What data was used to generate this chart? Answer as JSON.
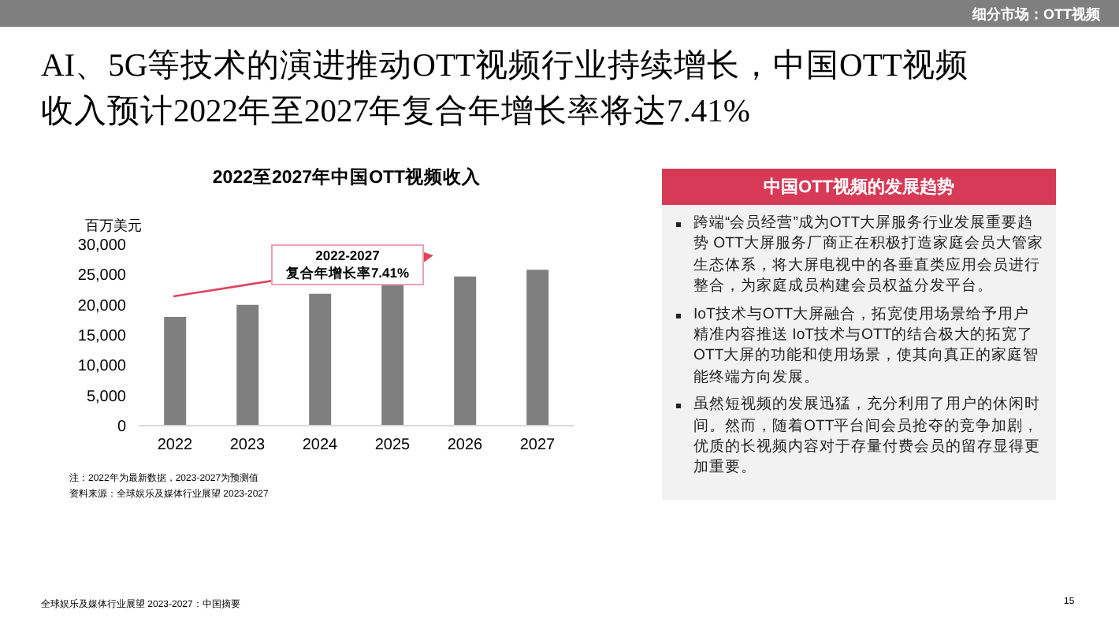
{
  "chart_data": [
    {
      "type": "bar",
      "title": "2022至2027年中国OTT视频收入",
      "ylabel": "百万美元",
      "categories": [
        "2022",
        "2023",
        "2024",
        "2025",
        "2026",
        "2027"
      ],
      "values": [
        18000,
        20000,
        21800,
        23400,
        24700,
        25800
      ],
      "color": "#7f7f7f",
      "ylim": [
        0,
        30000
      ],
      "yticks": [
        0,
        {
          "value": 5000,
          "label": "5,000"
        },
        {
          "value": 10000,
          "label": "10,000"
        },
        {
          "value": 15000,
          "label": "15,000"
        },
        {
          "value": 20000,
          "label": "20,000"
        },
        {
          "value": 25000,
          "label": "25,000"
        },
        {
          "value": 30000,
          "label": "30,000"
        }
      ],
      "annotations": [
        "2022-2027\n复合年增长率7.41%",
        "注：2022年为最新数据，2023-2027为预测值",
        "资料来源：全球娱乐及媒体行业展望 2023-2027",
        "细分市场：OTT视频",
        "AI、5G等技术的演进推动OTT视频行业持续增长，中国OTT视频收入预计2022年至2027年复合年增长率将达7.41%",
        "全球娱乐及媒体行业展望 2023-2027：中国摘要",
        "15"
      ]
    },
    {
      "type": "other",
      "title": "中国OTT视频的发展趋势",
      "annotations": [
        "跨端“会员经营”成为OTT大屏服务行业发展重要趋势 OTT大屏服务厂商正在积极打造家庭会员大管家生态体系，将大屏电视中的各垂直类应用会员进行整合，为家庭成员构建会员权益分发平台。",
        "IoT技术与OTT大屏融合，拓宽使用场景给予用户精准内容推送 IoT技术与OTT的结合极大的拓宽了OTT大屏的功能和使用场景，使其向真正的家庭智能终端方向发展。",
        "虽然短视频的发展迅猛，充分利用了用户的休闲时间。然而，随着OTT平台间会员抢夺的竞争加剧，优质的长视频内容对于存量付费会员的留存显得更加重要。"
      ]
    }
  ]
}
